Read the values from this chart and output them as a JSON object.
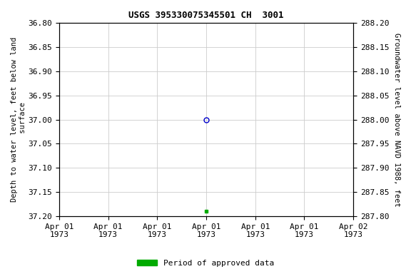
{
  "title": "USGS 395330075345501 CH  3001",
  "ylabel_left": "Depth to water level, feet below land\n surface",
  "ylabel_right": "Groundwater level above NAVD 1988, feet",
  "ylim_left": [
    37.2,
    36.8
  ],
  "ylim_right": [
    287.8,
    288.2
  ],
  "yticks_left": [
    36.8,
    36.85,
    36.9,
    36.95,
    37.0,
    37.05,
    37.1,
    37.15,
    37.2
  ],
  "yticks_right": [
    288.2,
    288.15,
    288.1,
    288.05,
    288.0,
    287.95,
    287.9,
    287.85,
    287.8
  ],
  "point_open_x_days": 3,
  "point_open_y": 37.0,
  "point_filled_x_days": 3,
  "point_filled_y": 37.19,
  "point_open_color": "#0000cc",
  "point_filled_color": "#00aa00",
  "legend_label": "Period of approved data",
  "legend_color": "#00aa00",
  "background_color": "#ffffff",
  "grid_color": "#cccccc",
  "title_fontsize": 9,
  "label_fontsize": 7.5,
  "tick_fontsize": 8,
  "xlim_days": [
    0,
    6
  ],
  "xtick_day_positions": [
    0,
    1,
    2,
    3,
    4,
    5,
    6
  ],
  "xtick_labels_top": [
    "Apr 01",
    "Apr 01",
    "Apr 01",
    "Apr 01",
    "Apr 01",
    "Apr 01",
    "Apr 02"
  ],
  "xtick_labels_bot": [
    "1973",
    "1973",
    "1973",
    "1973",
    "1973",
    "1973",
    "1973"
  ]
}
